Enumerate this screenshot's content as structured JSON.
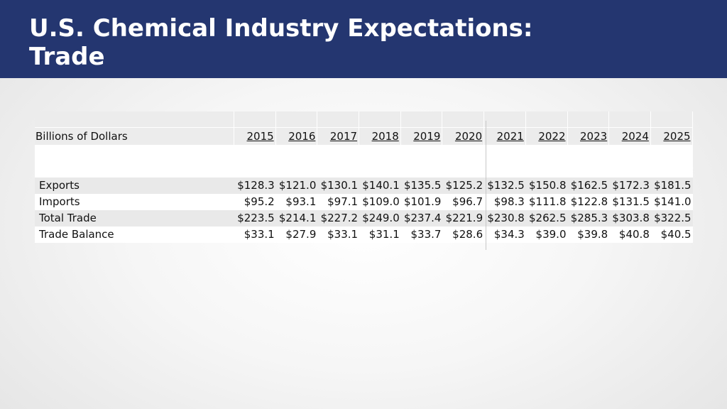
{
  "title": {
    "line1": "U.S. Chemical Industry Expectations:",
    "line2": "Trade"
  },
  "table": {
    "header_label": "Billions of Dollars",
    "years": [
      "2015",
      "2016",
      "2017",
      "2018",
      "2019",
      "2020",
      "2021",
      "2022",
      "2023",
      "2024",
      "2025"
    ],
    "rows": [
      {
        "label": "Exports",
        "values": [
          "$128.3",
          "$121.0",
          "$130.1",
          "$140.1",
          "$135.5",
          "$125.2",
          "$132.5",
          "$150.8",
          "$162.5",
          "$172.3",
          "$181.5"
        ]
      },
      {
        "label": "Imports",
        "values": [
          "$95.2",
          "$93.1",
          "$97.1",
          "$109.0",
          "$101.9",
          "$96.7",
          "$98.3",
          "$111.8",
          "$122.8",
          "$131.5",
          "$141.0"
        ]
      },
      {
        "label": "Total Trade",
        "values": [
          "$223.5",
          "$214.1",
          "$227.2",
          "$249.0",
          "$237.4",
          "$221.9",
          "$230.8",
          "$262.5",
          "$285.3",
          "$303.8",
          "$322.5"
        ]
      },
      {
        "label": "Trade Balance",
        "values": [
          "$33.1",
          "$27.9",
          "$33.1",
          "$31.1",
          "$33.7",
          "$28.6",
          "$34.3",
          "$39.0",
          "$39.8",
          "$40.8",
          "$40.5"
        ]
      }
    ]
  }
}
